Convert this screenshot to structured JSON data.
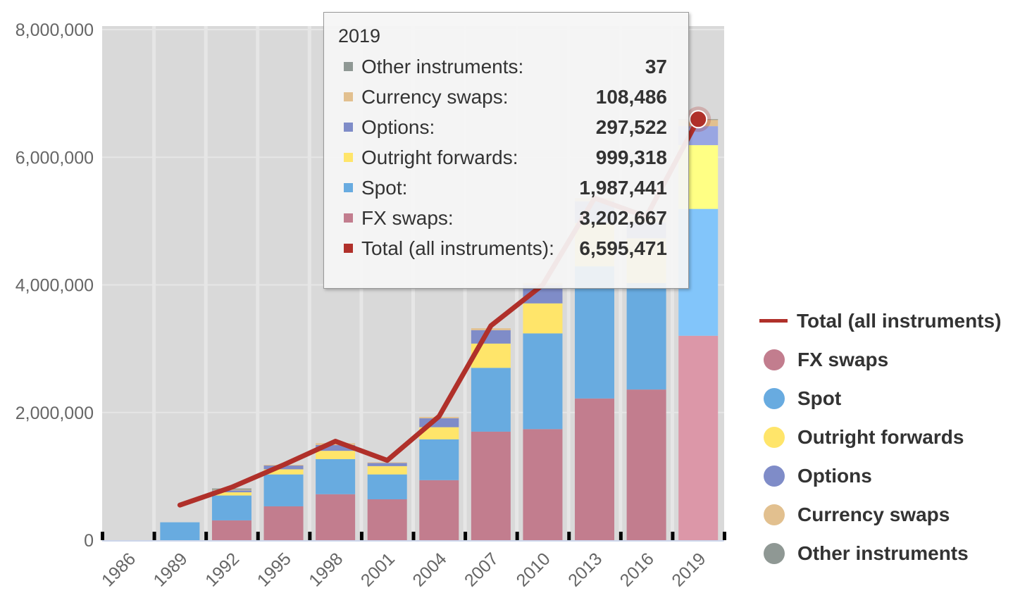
{
  "chart_data": {
    "type": "bar",
    "stacked": true,
    "categories": [
      "1986",
      "1989",
      "1992",
      "1995",
      "1998",
      "2001",
      "2004",
      "2007",
      "2010",
      "2013",
      "2016",
      "2019"
    ],
    "ylim": [
      0,
      8000000
    ],
    "yticks": [
      "0",
      "2,000,000",
      "4,000,000",
      "6,000,000",
      "8,000,000"
    ],
    "ytick_values": [
      0,
      2000000,
      4000000,
      6000000,
      8000000
    ],
    "grid": true,
    "legend_position": "right",
    "series": [
      {
        "name": "FX swaps",
        "color": "#c27d8e",
        "values": [
          null,
          null,
          310000,
          530000,
          720000,
          640000,
          940000,
          1700000,
          1740000,
          2220000,
          2360000,
          3202667
        ]
      },
      {
        "name": "Spot",
        "color": "#68abe0",
        "values": [
          null,
          280000,
          390000,
          500000,
          550000,
          390000,
          640000,
          1000000,
          1500000,
          2070000,
          1670000,
          1987441
        ]
      },
      {
        "name": "Outright forwards",
        "color": "#ffe56a",
        "values": [
          null,
          null,
          50000,
          80000,
          130000,
          130000,
          190000,
          380000,
          470000,
          680000,
          700000,
          999318
        ]
      },
      {
        "name": "Options",
        "color": "#7f8cc8",
        "values": [
          null,
          null,
          30000,
          60000,
          90000,
          50000,
          140000,
          210000,
          280000,
          340000,
          250000,
          297522
        ]
      },
      {
        "name": "Currency swaps",
        "color": "#e2c08f",
        "values": [
          null,
          null,
          10000,
          10000,
          30000,
          10000,
          20000,
          30000,
          40000,
          50000,
          80000,
          108486
        ]
      },
      {
        "name": "Other instruments",
        "color": "#8f9894",
        "values": [
          null,
          null,
          20000,
          null,
          null,
          null,
          null,
          null,
          null,
          null,
          null,
          37
        ]
      }
    ],
    "line_series": {
      "name": "Total (all instruments)",
      "color": "#b0302a",
      "values": [
        null,
        550000,
        830000,
        1180000,
        1550000,
        1250000,
        1940000,
        3360000,
        4000000,
        5360000,
        5070000,
        6595471
      ]
    },
    "highlighted_category": "2019"
  },
  "tooltip": {
    "title": "2019",
    "rows": [
      {
        "label": "Other instruments:",
        "value": "37",
        "color": "#8f9894"
      },
      {
        "label": "Currency swaps:",
        "value": "108,486",
        "color": "#e2c08f"
      },
      {
        "label": "Options:",
        "value": "297,522",
        "color": "#7f8cc8"
      },
      {
        "label": "Outright forwards:",
        "value": "999,318",
        "color": "#ffe56a"
      },
      {
        "label": "Spot:",
        "value": "1,987,441",
        "color": "#68abe0"
      },
      {
        "label": "FX swaps:",
        "value": "3,202,667",
        "color": "#c27d8e"
      },
      {
        "label": "Total (all instruments):",
        "value": "6,595,471",
        "color": "#b0302a"
      }
    ]
  },
  "legend": [
    {
      "label": "Total (all instruments)",
      "color": "#b0302a",
      "kind": "line"
    },
    {
      "label": "FX swaps",
      "color": "#c27d8e",
      "kind": "dot"
    },
    {
      "label": "Spot",
      "color": "#68abe0",
      "kind": "dot"
    },
    {
      "label": "Outright forwards",
      "color": "#ffe56a",
      "kind": "dot"
    },
    {
      "label": "Options",
      "color": "#7f8cc8",
      "kind": "dot"
    },
    {
      "label": "Currency swaps",
      "color": "#e2c08f",
      "kind": "dot"
    },
    {
      "label": "Other instruments",
      "color": "#8f9894",
      "kind": "dot"
    }
  ]
}
